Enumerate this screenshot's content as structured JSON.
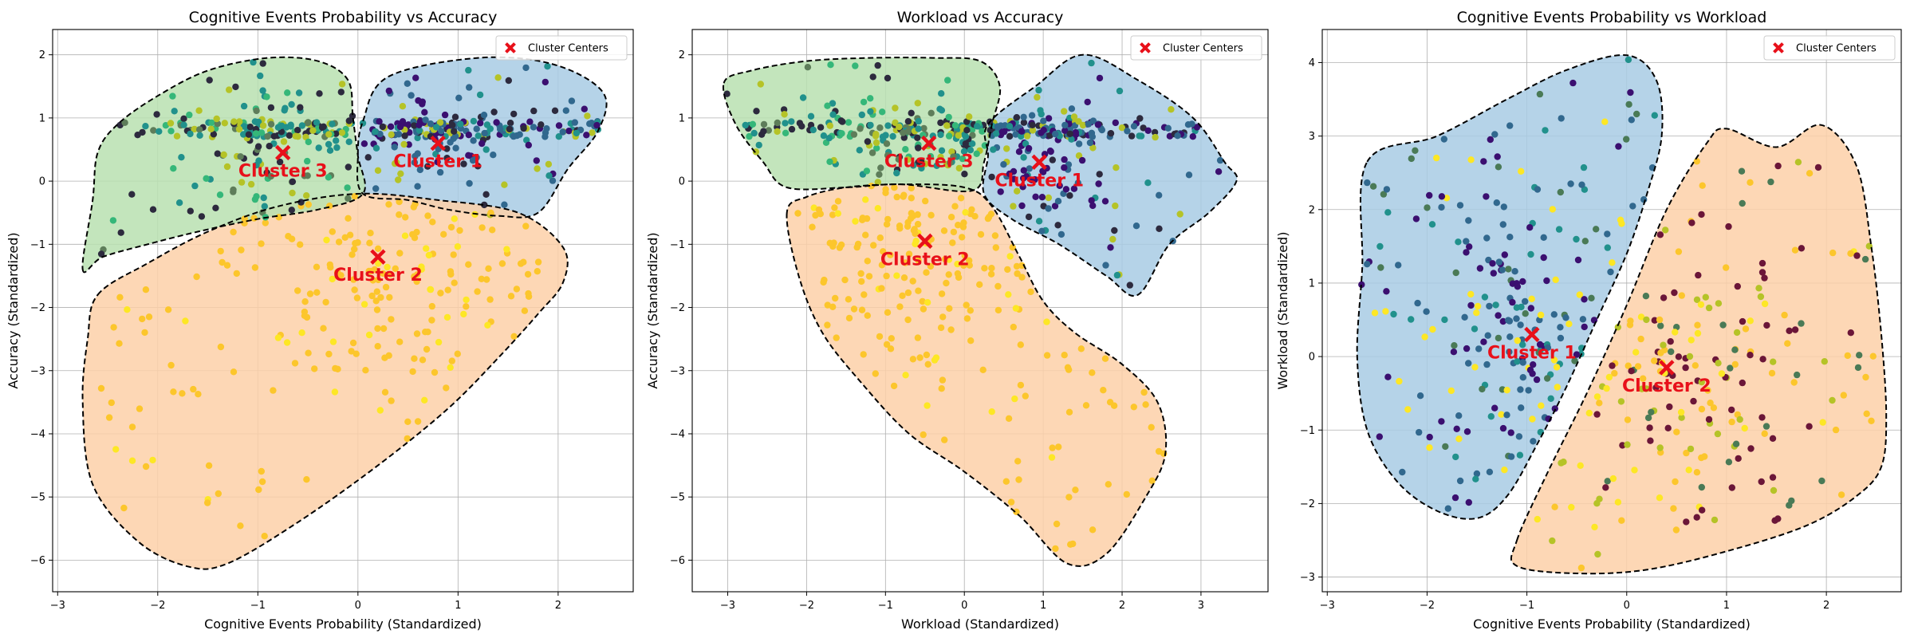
{
  "chart_data": [
    {
      "type": "scatter",
      "title": "Cognitive Events Probability vs Accuracy",
      "xlabel": "Cognitive Events Probability (Standardized)",
      "ylabel": "Accuracy (Standardized)",
      "xlim": [
        -3.05,
        2.75
      ],
      "ylim": [
        -6.5,
        2.4
      ],
      "xticks": [
        -3,
        -2,
        -1,
        0,
        1,
        2
      ],
      "yticks": [
        -6,
        -5,
        -4,
        -3,
        -2,
        -1,
        0,
        1,
        2
      ],
      "grid": true,
      "legend": {
        "position": "top-right",
        "entries": [
          "Cluster Centers"
        ]
      },
      "point_colors": [
        "#3b0f70",
        "#31688e",
        "#21918c",
        "#35b779",
        "#5e7d5a",
        "#b5c327",
        "#fde725",
        "#fcc62c",
        "#2d2a3e"
      ],
      "regions": [
        {
          "name": "Cluster 1",
          "color": "#a8cbe4",
          "polygon": [
            [
              0.05,
              0.95
            ],
            [
              0.3,
              1.65
            ],
            [
              1.2,
              1.95
            ],
            [
              1.95,
              1.85
            ],
            [
              2.45,
              1.4
            ],
            [
              2.4,
              0.8
            ],
            [
              2.1,
              0.2
            ],
            [
              1.8,
              -0.5
            ],
            [
              1.4,
              -0.55
            ],
            [
              0.9,
              -0.45
            ],
            [
              0.5,
              -0.3
            ],
            [
              0.05,
              -0.2
            ],
            [
              0.0,
              0.4
            ]
          ]
        },
        {
          "name": "Cluster 2",
          "color": "#fdd0a8",
          "polygon": [
            [
              -2.6,
              -1.8
            ],
            [
              -2.1,
              -1.3
            ],
            [
              -1.5,
              -0.8
            ],
            [
              -0.8,
              -0.4
            ],
            [
              0.0,
              -0.2
            ],
            [
              0.8,
              -0.3
            ],
            [
              1.6,
              -0.5
            ],
            [
              2.05,
              -1.05
            ],
            [
              2.05,
              -1.6
            ],
            [
              1.8,
              -2.1
            ],
            [
              1.4,
              -2.8
            ],
            [
              0.9,
              -3.6
            ],
            [
              0.2,
              -4.5
            ],
            [
              -0.6,
              -5.4
            ],
            [
              -1.3,
              -6.05
            ],
            [
              -1.7,
              -6.1
            ],
            [
              -2.2,
              -5.7
            ],
            [
              -2.65,
              -4.8
            ],
            [
              -2.75,
              -3.5
            ],
            [
              -2.7,
              -2.5
            ]
          ]
        },
        {
          "name": "Cluster 3",
          "color": "#b8e0b0",
          "polygon": [
            [
              -2.75,
              -1.4
            ],
            [
              -2.55,
              -1.2
            ],
            [
              -2.1,
              -1.0
            ],
            [
              -1.6,
              -0.8
            ],
            [
              -1.0,
              -0.6
            ],
            [
              -0.4,
              -0.45
            ],
            [
              0.05,
              -0.2
            ],
            [
              0.0,
              0.4
            ],
            [
              -0.05,
              1.0
            ],
            [
              -0.1,
              1.6
            ],
            [
              -0.4,
              1.9
            ],
            [
              -0.9,
              1.95
            ],
            [
              -1.5,
              1.75
            ],
            [
              -2.0,
              1.35
            ],
            [
              -2.4,
              0.9
            ],
            [
              -2.6,
              0.45
            ],
            [
              -2.65,
              -0.3
            ]
          ]
        }
      ],
      "centers": [
        {
          "label": "Cluster 1",
          "x": 0.8,
          "y": 0.6
        },
        {
          "label": "Cluster 2",
          "x": 0.2,
          "y": -1.2
        },
        {
          "label": "Cluster 3",
          "x": -0.75,
          "y": 0.45
        }
      ]
    },
    {
      "type": "scatter",
      "title": "Workload vs Accuracy",
      "xlabel": "Workload (Standardized)",
      "ylabel": "Accuracy (Standardized)",
      "xlim": [
        -3.45,
        3.85
      ],
      "ylim": [
        -6.5,
        2.4
      ],
      "xticks": [
        -3,
        -2,
        -1,
        0,
        1,
        2,
        3
      ],
      "yticks": [
        -6,
        -5,
        -4,
        -3,
        -2,
        -1,
        0,
        1,
        2
      ],
      "grid": true,
      "legend": {
        "position": "top-right",
        "entries": [
          "Cluster Centers"
        ]
      },
      "point_colors": [
        "#3b0f70",
        "#31688e",
        "#21918c",
        "#35b779",
        "#5e7d5a",
        "#b5c327",
        "#fde725",
        "#fcc62c",
        "#2d2a3e"
      ],
      "regions": [
        {
          "name": "Cluster 1",
          "color": "#a8cbe4",
          "polygon": [
            [
              0.3,
              0.9
            ],
            [
              0.9,
              1.5
            ],
            [
              1.5,
              2.0
            ],
            [
              2.2,
              1.6
            ],
            [
              2.9,
              1.0
            ],
            [
              3.3,
              0.3
            ],
            [
              3.45,
              0.0
            ],
            [
              3.1,
              -0.5
            ],
            [
              2.6,
              -1.0
            ],
            [
              2.2,
              -1.8
            ],
            [
              1.8,
              -1.5
            ],
            [
              1.2,
              -1.0
            ],
            [
              0.6,
              -0.6
            ],
            [
              0.25,
              -0.2
            ],
            [
              0.3,
              0.4
            ]
          ]
        },
        {
          "name": "Cluster 2",
          "color": "#fdd0a8",
          "polygon": [
            [
              -2.25,
              -0.5
            ],
            [
              -2.1,
              -1.5
            ],
            [
              -1.8,
              -2.4
            ],
            [
              -1.3,
              -3.2
            ],
            [
              -0.7,
              -4.0
            ],
            [
              0.0,
              -4.6
            ],
            [
              0.7,
              -5.3
            ],
            [
              1.3,
              -6.05
            ],
            [
              1.8,
              -5.9
            ],
            [
              2.3,
              -5.0
            ],
            [
              2.55,
              -4.3
            ],
            [
              2.45,
              -3.5
            ],
            [
              2.0,
              -2.9
            ],
            [
              1.4,
              -2.4
            ],
            [
              1.0,
              -1.9
            ],
            [
              0.7,
              -1.2
            ],
            [
              0.35,
              -0.4
            ],
            [
              0.0,
              -0.1
            ],
            [
              -0.8,
              -0.05
            ],
            [
              -1.5,
              -0.1
            ],
            [
              -2.0,
              -0.25
            ]
          ]
        },
        {
          "name": "Cluster 3",
          "color": "#b8e0b0",
          "polygon": [
            [
              -3.05,
              1.55
            ],
            [
              -2.7,
              1.75
            ],
            [
              -2.0,
              1.9
            ],
            [
              -1.2,
              1.95
            ],
            [
              -0.4,
              1.95
            ],
            [
              0.2,
              1.9
            ],
            [
              0.45,
              1.5
            ],
            [
              0.35,
              0.9
            ],
            [
              0.25,
              0.3
            ],
            [
              0.1,
              -0.15
            ],
            [
              -0.8,
              -0.05
            ],
            [
              -1.5,
              -0.1
            ],
            [
              -2.25,
              -0.1
            ],
            [
              -2.55,
              0.3
            ],
            [
              -2.9,
              0.9
            ]
          ]
        }
      ],
      "centers": [
        {
          "label": "Cluster 1",
          "x": 0.95,
          "y": 0.3
        },
        {
          "label": "Cluster 2",
          "x": -0.5,
          "y": -0.95
        },
        {
          "label": "Cluster 3",
          "x": -0.45,
          "y": 0.6
        }
      ]
    },
    {
      "type": "scatter",
      "title": "Cognitive Events Probability vs Workload",
      "xlabel": "Cognitive Events Probability (Standardized)",
      "ylabel": "Workload (Standardized)",
      "xlim": [
        -3.05,
        2.75
      ],
      "ylim": [
        -3.2,
        4.45
      ],
      "xticks": [
        -3,
        -2,
        -1,
        0,
        1,
        2
      ],
      "yticks": [
        -3,
        -2,
        -1,
        0,
        1,
        2,
        3,
        4
      ],
      "grid": true,
      "legend": {
        "position": "top-right",
        "entries": [
          "Cluster Centers"
        ]
      },
      "point_colors": [
        "#3b0f70",
        "#31688e",
        "#21918c",
        "#4a7a56",
        "#6b1638",
        "#b5c327",
        "#fde725",
        "#fcc62c",
        "#2d2a3e"
      ],
      "regions": [
        {
          "name": "Cluster 1",
          "color": "#a8cbe4",
          "polygon": [
            [
              -2.6,
              2.65
            ],
            [
              -1.9,
              3.0
            ],
            [
              -1.2,
              3.5
            ],
            [
              -0.6,
              3.9
            ],
            [
              0.0,
              4.1
            ],
            [
              0.3,
              3.75
            ],
            [
              0.35,
              3.0
            ],
            [
              0.2,
              2.2
            ],
            [
              0.0,
              1.4
            ],
            [
              -0.3,
              0.5
            ],
            [
              -0.6,
              -0.4
            ],
            [
              -0.9,
              -1.2
            ],
            [
              -1.2,
              -1.9
            ],
            [
              -1.5,
              -2.2
            ],
            [
              -1.9,
              -2.1
            ],
            [
              -2.3,
              -1.7
            ],
            [
              -2.6,
              -1.0
            ],
            [
              -2.7,
              0.0
            ],
            [
              -2.65,
              1.2
            ]
          ]
        },
        {
          "name": "Cluster 2",
          "color": "#fdd0a8",
          "polygon": [
            [
              -1.1,
              -2.5
            ],
            [
              -0.8,
              -1.6
            ],
            [
              -0.4,
              -0.5
            ],
            [
              0.0,
              0.7
            ],
            [
              0.4,
              2.0
            ],
            [
              0.8,
              2.9
            ],
            [
              1.0,
              3.1
            ],
            [
              1.5,
              2.85
            ],
            [
              1.95,
              3.15
            ],
            [
              2.3,
              2.6
            ],
            [
              2.45,
              1.5
            ],
            [
              2.55,
              0.3
            ],
            [
              2.6,
              -0.8
            ],
            [
              2.55,
              -1.5
            ],
            [
              2.3,
              -1.9
            ],
            [
              1.8,
              -2.3
            ],
            [
              1.0,
              -2.65
            ],
            [
              0.2,
              -2.9
            ],
            [
              -0.5,
              -2.95
            ],
            [
              -1.1,
              -2.85
            ]
          ]
        }
      ],
      "centers": [
        {
          "label": "Cluster 1",
          "x": -0.95,
          "y": 0.3
        },
        {
          "label": "Cluster 2",
          "x": 0.4,
          "y": -0.15
        }
      ]
    }
  ]
}
